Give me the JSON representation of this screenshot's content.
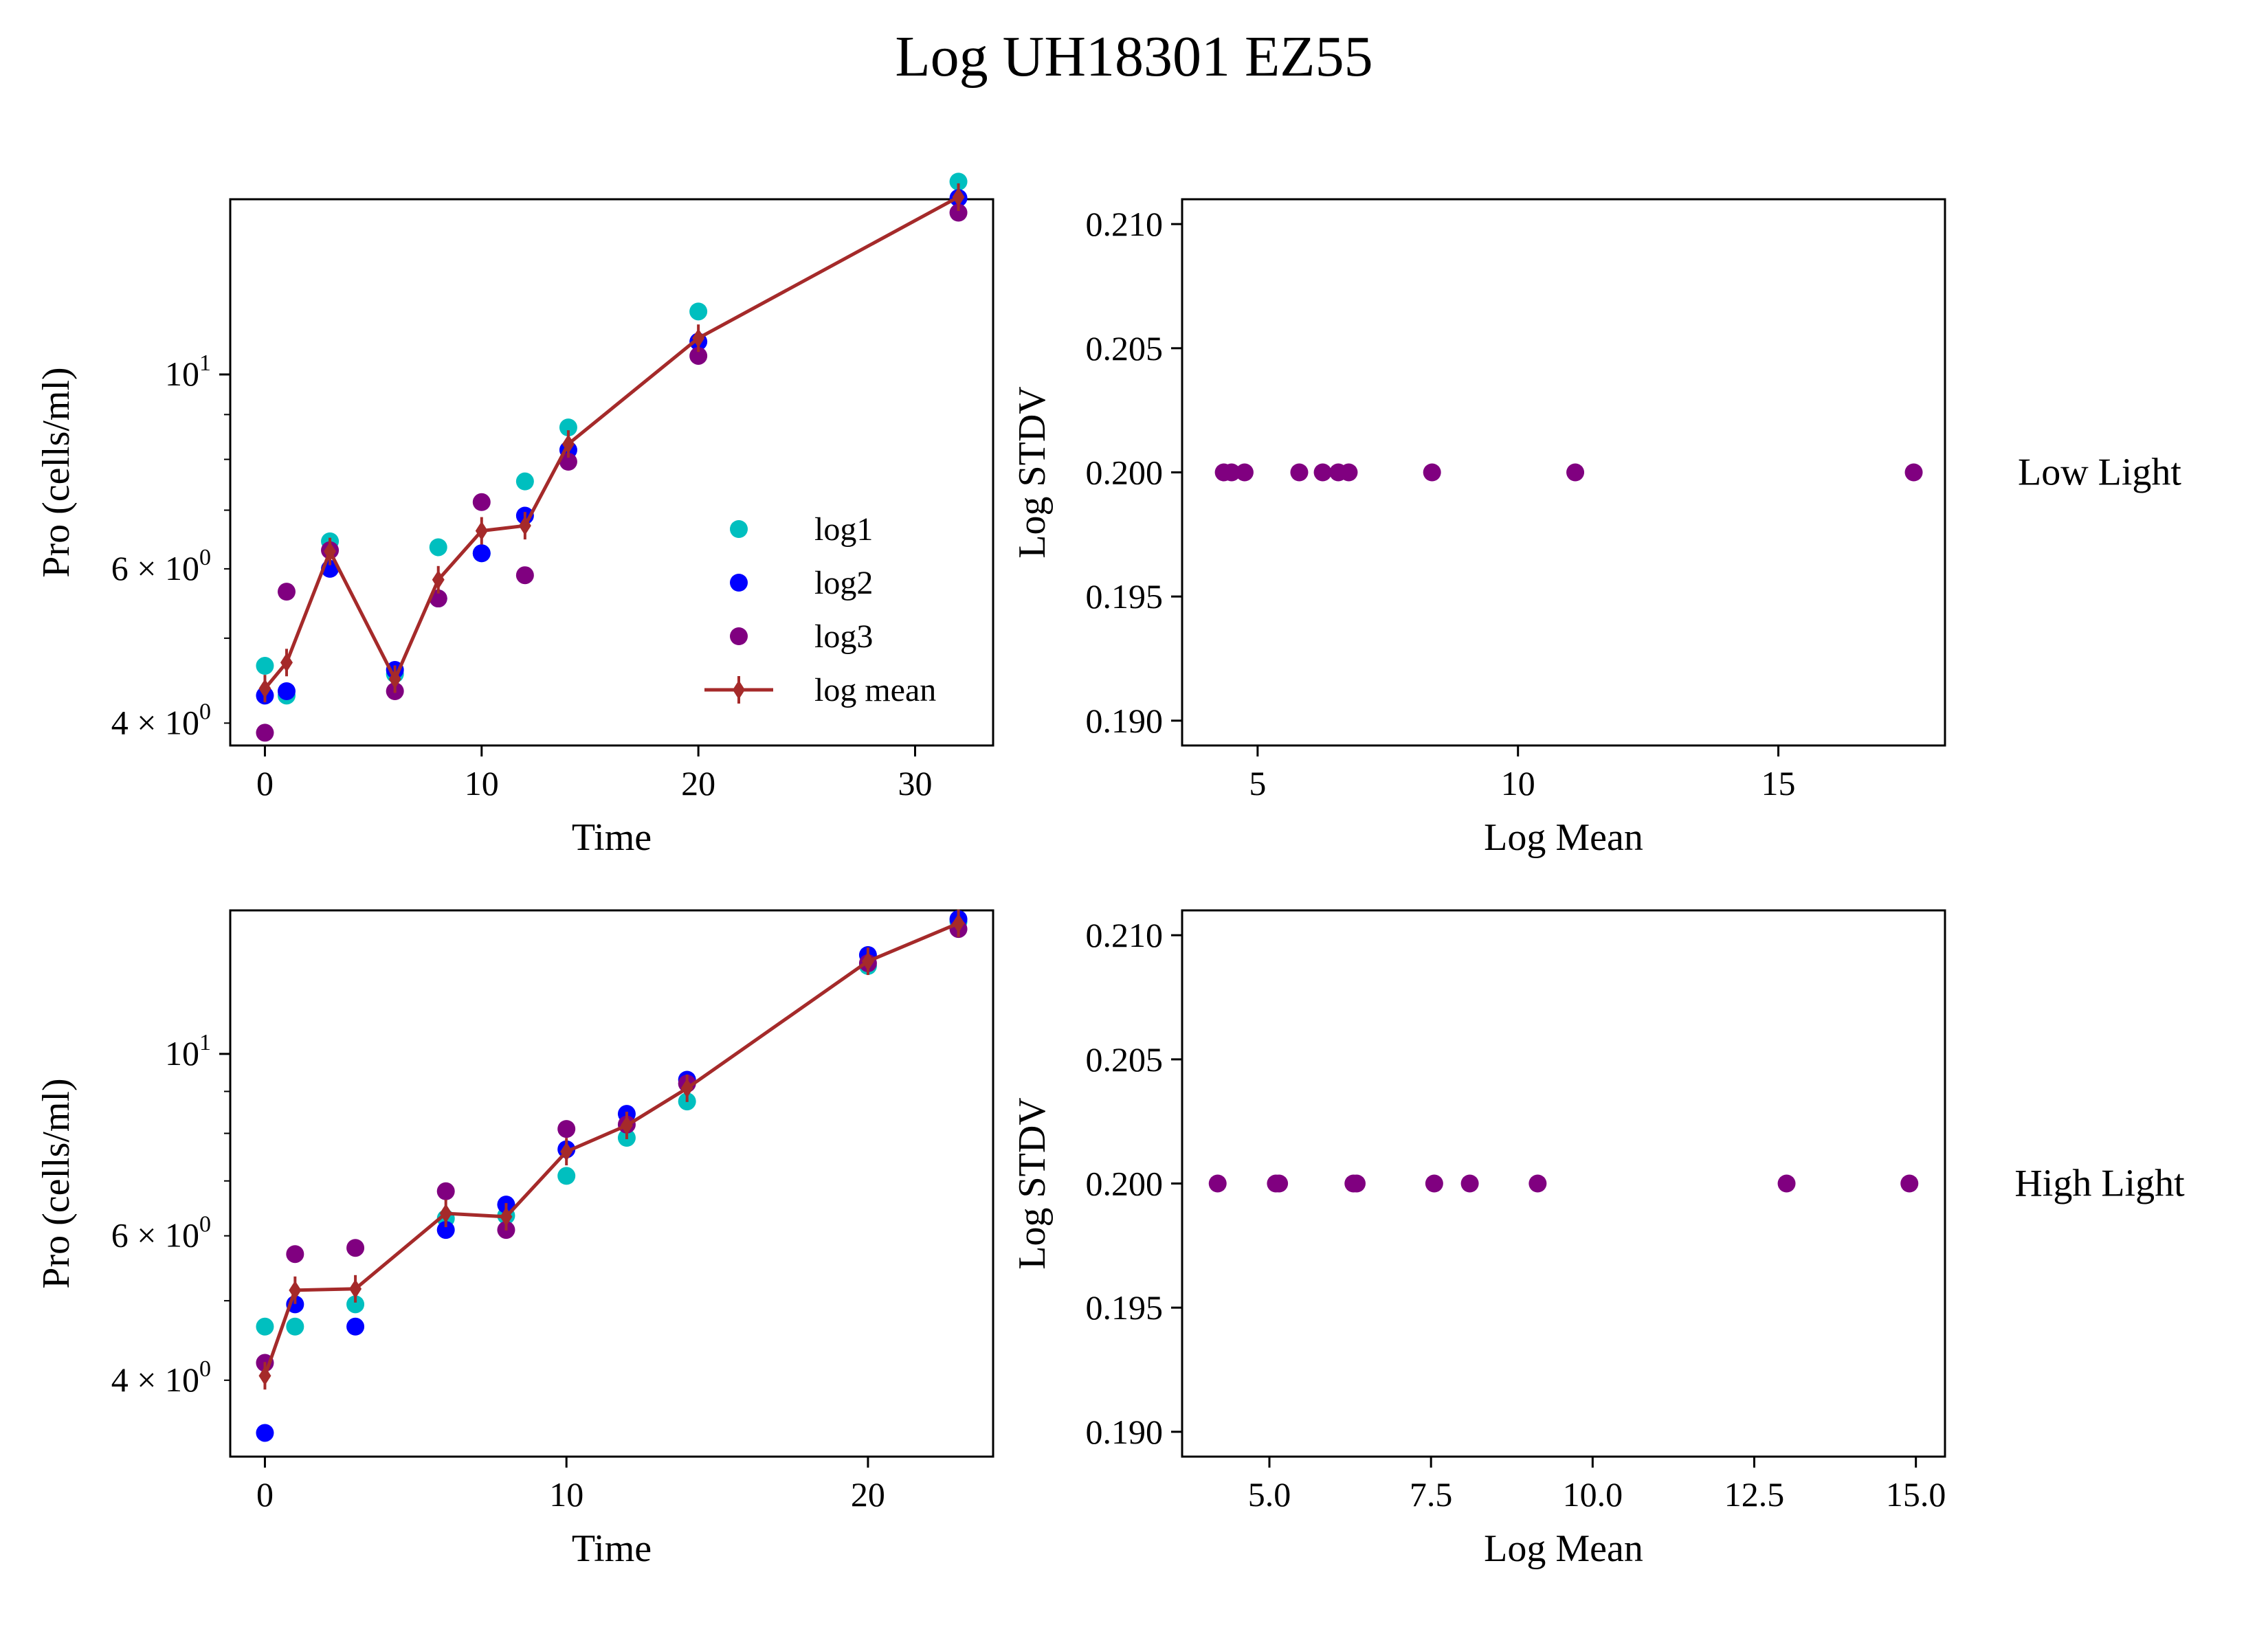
{
  "title": "Log UH18301 EZ55",
  "colors": {
    "log1": "#00bfbf",
    "log2": "#0000ff",
    "log3": "#800080",
    "mean": "#a52a2a",
    "scatter": "#800080"
  },
  "chart_data": [
    {
      "id": "low-time",
      "type": "scatter",
      "xlabel": "Time",
      "ylabel": "Pro (cells/ml)",
      "xlim": [
        -1.6,
        33.6
      ],
      "ylim_log10": [
        0.5765,
        1.2
      ],
      "yscale": "log",
      "xticks": [
        0,
        10,
        20,
        30
      ],
      "xtick_labels": [
        "0",
        "10",
        "20",
        "30"
      ],
      "yticks": [
        4,
        6,
        10
      ],
      "ytick_labels": [
        {
          "base": "4 × 10",
          "exp": "0"
        },
        {
          "base": "6 × 10",
          "exp": "0"
        },
        {
          "base": "10",
          "exp": "1"
        }
      ],
      "legend_position": "lower-right",
      "legend": [
        "log1",
        "log2",
        " log3",
        "log mean"
      ],
      "series": [
        {
          "name": "log1",
          "x": [
            0,
            1,
            3,
            6,
            8,
            10,
            12,
            14,
            20,
            32
          ],
          "y": [
            4.65,
            4.3,
            6.45,
            4.55,
            6.35,
            6.25,
            7.55,
            8.7,
            11.8,
            16.6
          ]
        },
        {
          "name": "log2",
          "x": [
            0,
            1,
            3,
            6,
            8,
            10,
            12,
            14,
            20,
            32
          ],
          "y": [
            4.3,
            4.35,
            6.0,
            4.6,
            5.55,
            6.25,
            6.9,
            8.2,
            10.9,
            15.9
          ]
        },
        {
          "name": "log3",
          "x": [
            0,
            1,
            3,
            6,
            8,
            10,
            12,
            14,
            20,
            32
          ],
          "y": [
            3.9,
            5.65,
            6.3,
            4.35,
            5.55,
            7.15,
            5.9,
            7.95,
            10.5,
            15.3
          ]
        },
        {
          "name": "log mean",
          "x": [
            0,
            1,
            3,
            6,
            8,
            10,
            12,
            14,
            20,
            32
          ],
          "y": [
            4.38,
            4.69,
            6.28,
            4.49,
            5.83,
            6.63,
            6.72,
            8.33,
            11.0,
            15.94
          ]
        }
      ]
    },
    {
      "id": "low-stdv",
      "type": "scatter",
      "xlabel": "Log Mean",
      "ylabel": "Log STDV",
      "xlim": [
        3.55,
        18.2
      ],
      "ylim": [
        0.189,
        0.211
      ],
      "xticks": [
        5,
        10,
        15
      ],
      "xtick_labels": [
        "5",
        "10",
        "15"
      ],
      "yticks": [
        0.19,
        0.195,
        0.2,
        0.205,
        0.21
      ],
      "ytick_labels": [
        "0.190",
        "0.195",
        "0.200",
        "0.205",
        "0.210"
      ],
      "side_label": "Low Light",
      "series": [
        {
          "x": [
            4.35,
            4.5,
            4.75,
            5.8,
            6.25,
            6.55,
            6.75,
            8.35,
            11.1,
            17.6
          ],
          "y": [
            0.2,
            0.2,
            0.2,
            0.2,
            0.2,
            0.2,
            0.2,
            0.2,
            0.2,
            0.2
          ]
        }
      ]
    },
    {
      "id": "high-time",
      "type": "scatter",
      "xlabel": "Time",
      "ylabel": "Pro (cells/ml)",
      "xlim": [
        -1.15,
        24.15
      ],
      "ylim_log10": [
        0.5089,
        1.175
      ],
      "yscale": "log",
      "xticks": [
        0,
        10,
        20
      ],
      "xtick_labels": [
        "0",
        "10",
        "20"
      ],
      "yticks": [
        4,
        6,
        10
      ],
      "ytick_labels": [
        {
          "base": "4 × 10",
          "exp": "0"
        },
        {
          "base": "6 × 10",
          "exp": "0"
        },
        {
          "base": "10",
          "exp": "1"
        }
      ],
      "side_label": "",
      "series": [
        {
          "name": "log1",
          "x": [
            0,
            1,
            3,
            6,
            8,
            10,
            12,
            14,
            20,
            23
          ],
          "y": [
            4.65,
            4.65,
            4.95,
            6.3,
            6.35,
            7.1,
            7.9,
            8.75,
            12.8,
            14.5
          ]
        },
        {
          "name": "log2",
          "x": [
            0,
            1,
            3,
            6,
            8,
            10,
            12,
            14,
            20,
            23
          ],
          "y": [
            3.45,
            4.95,
            4.65,
            6.1,
            6.55,
            7.65,
            8.45,
            9.3,
            13.2,
            14.6
          ]
        },
        {
          "name": "log3",
          "x": [
            0,
            1,
            3,
            6,
            8,
            10,
            12,
            14,
            20,
            23
          ],
          "y": [
            4.2,
            5.7,
            5.8,
            6.8,
            6.1,
            8.1,
            8.2,
            9.2,
            12.9,
            14.2
          ]
        },
        {
          "name": "log mean",
          "x": [
            0,
            1,
            3,
            6,
            8,
            10,
            12,
            14,
            20,
            23
          ],
          "y": [
            4.05,
            5.15,
            5.17,
            6.39,
            6.33,
            7.6,
            8.18,
            9.08,
            12.97,
            14.43
          ]
        }
      ]
    },
    {
      "id": "high-stdv",
      "type": "scatter",
      "xlabel": "Log Mean",
      "ylabel": "Log STDV",
      "xlim": [
        3.65,
        15.45
      ],
      "ylim": [
        0.189,
        0.211
      ],
      "xticks": [
        5,
        7.5,
        10,
        12.5,
        15
      ],
      "xtick_labels": [
        "5.0",
        "7.5",
        "10.0",
        "12.5",
        "15.0"
      ],
      "yticks": [
        0.19,
        0.195,
        0.2,
        0.205,
        0.21
      ],
      "ytick_labels": [
        "0.190",
        "0.195",
        "0.200",
        "0.205",
        "0.210"
      ],
      "side_label": "High Light",
      "series": [
        {
          "x": [
            4.2,
            5.1,
            5.15,
            6.3,
            6.35,
            7.55,
            8.1,
            9.15,
            13.0,
            14.9
          ],
          "y": [
            0.2,
            0.2,
            0.2,
            0.2,
            0.2,
            0.2,
            0.2,
            0.2,
            0.2,
            0.2
          ]
        }
      ]
    }
  ]
}
